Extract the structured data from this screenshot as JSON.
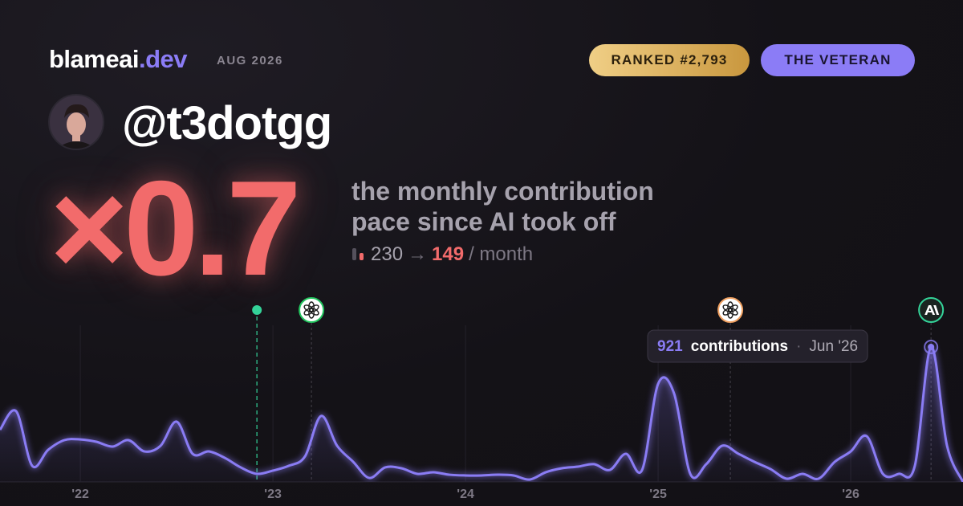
{
  "header": {
    "brand": "blameai",
    "brand_tld": ".dev",
    "period": "AUG 2026",
    "rank_badge": "RANKED #2,793",
    "title_badge": "THE VETERAN"
  },
  "profile": {
    "handle": "@t3dotgg"
  },
  "headline": {
    "multiplier": "×0.7",
    "description": [
      "the monthly contribution",
      "pace since AI took off"
    ],
    "before": "230",
    "arrow": "→",
    "after": "149",
    "unit": "/ month"
  },
  "chart_data": {
    "type": "line",
    "color": "#8a7cf4",
    "x": [
      2021.583,
      2021.667,
      2021.75,
      2021.833,
      2021.917,
      2022,
      2022.083,
      2022.167,
      2022.25,
      2022.333,
      2022.417,
      2022.5,
      2022.583,
      2022.667,
      2022.75,
      2022.833,
      2022.917,
      2023,
      2023.083,
      2023.167,
      2023.25,
      2023.333,
      2023.417,
      2023.5,
      2023.583,
      2023.667,
      2023.75,
      2023.833,
      2023.917,
      2024,
      2024.083,
      2024.167,
      2024.25,
      2024.333,
      2024.417,
      2024.5,
      2024.583,
      2024.667,
      2024.75,
      2024.833,
      2024.917,
      2025,
      2025.083,
      2025.167,
      2025.25,
      2025.333,
      2025.417,
      2025.5,
      2025.583,
      2025.667,
      2025.75,
      2025.833,
      2025.917,
      2026,
      2026.083,
      2026.167,
      2026.25,
      2026.333,
      2026.417,
      2026.5,
      2026.583
    ],
    "values": [
      356,
      482,
      110,
      219,
      285,
      290,
      274,
      241,
      285,
      208,
      247,
      411,
      192,
      208,
      164,
      99,
      55,
      77,
      110,
      175,
      450,
      247,
      137,
      27,
      99,
      93,
      55,
      66,
      49,
      44,
      44,
      49,
      44,
      16,
      66,
      93,
      104,
      121,
      82,
      192,
      82,
      669,
      603,
      55,
      121,
      247,
      192,
      137,
      88,
      22,
      55,
      22,
      137,
      208,
      312,
      55,
      55,
      110,
      921,
      247,
      0
    ],
    "xlim": [
      2021.583,
      2026.583
    ],
    "xticks": [
      {
        "value": 2022,
        "label": "'22"
      },
      {
        "value": 2023,
        "label": "'23"
      },
      {
        "value": 2024,
        "label": "'24"
      },
      {
        "value": 2025,
        "label": "'25"
      },
      {
        "value": 2026,
        "label": "'26"
      }
    ],
    "ylim": [
      0,
      1100
    ],
    "grid": true,
    "events": [
      {
        "x": 2022.917,
        "marker": "dot",
        "color": "#34d399"
      },
      {
        "x": 2023.2,
        "marker": "openai",
        "color": "#22c55e"
      },
      {
        "x": 2025.375,
        "marker": "openai",
        "color": "#f0a060"
      },
      {
        "x": 2026.417,
        "marker": "anthropic",
        "color": "#34d399"
      }
    ],
    "tooltip": {
      "x": 2026.417,
      "value": 921,
      "unit": "contributions",
      "separator": "·",
      "date": "Jun '26"
    }
  }
}
